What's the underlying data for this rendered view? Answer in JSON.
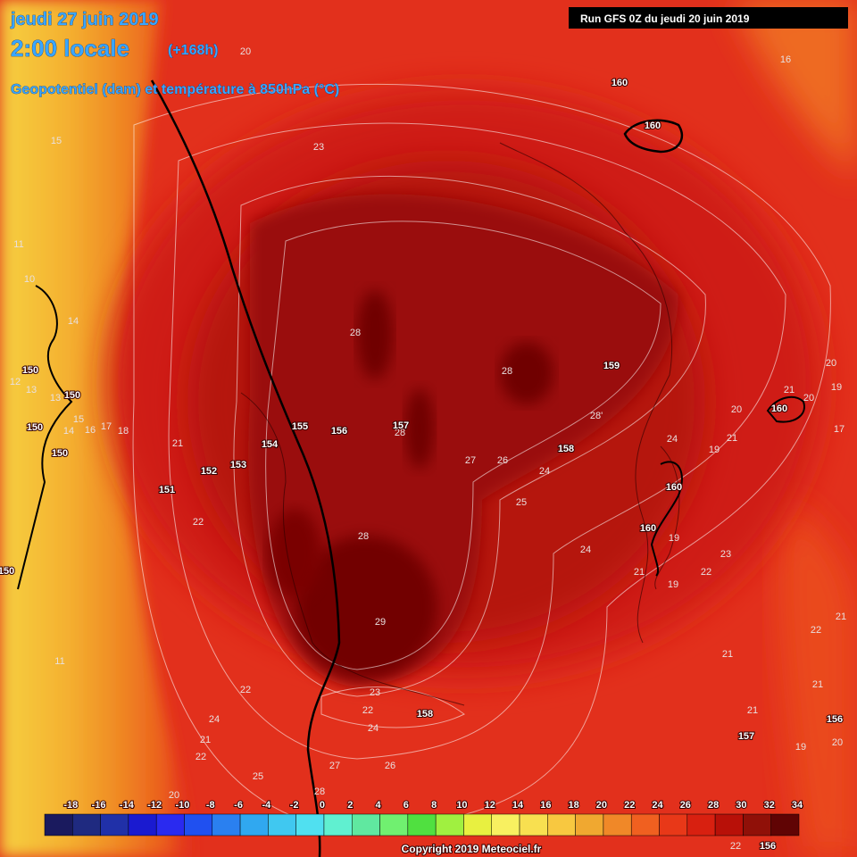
{
  "header": {
    "date": "jeudi 27 juin 2019",
    "time": "2:00 locale",
    "lead": "(+168h)",
    "field": "Geopotentiel (dam) et température à 850hPa (°C)",
    "run": "Run GFS 0Z du jeudi 20 juin 2019"
  },
  "map_labels": {
    "temperature": [
      20,
      16,
      23,
      15,
      10,
      14,
      28,
      28,
      28,
      "28'",
      27,
      26,
      24,
      25,
      28,
      24,
      29,
      22,
      21,
      18,
      17,
      16,
      22,
      23,
      22,
      24,
      24,
      21,
      22,
      25,
      27,
      26,
      28,
      21,
      21,
      21,
      22,
      21,
      19,
      20,
      24,
      21,
      20,
      19,
      23,
      22,
      19,
      19,
      21,
      17,
      20,
      19,
      21,
      20,
      11,
      12,
      13,
      13,
      11,
      15,
      14,
      22,
      20
    ],
    "geopotential": [
      160,
      160,
      159,
      158,
      157,
      156,
      155,
      154,
      153,
      152,
      151,
      150,
      150,
      150,
      150,
      160,
      160,
      160,
      158,
      157,
      156,
      156,
      150
    ]
  },
  "colorbar": {
    "labels": [
      -18,
      -16,
      -14,
      -12,
      -10,
      -8,
      -6,
      -4,
      -2,
      0,
      2,
      4,
      6,
      8,
      10,
      12,
      14,
      16,
      18,
      20,
      22,
      24,
      26,
      28,
      30,
      32,
      34
    ],
    "colors": [
      "#1a1a5e",
      "#1f2a80",
      "#2030a8",
      "#1a1ad0",
      "#2a2af0",
      "#2050f0",
      "#2a80f0",
      "#30a8f0",
      "#40c8f0",
      "#50e0f0",
      "#60f0d0",
      "#60e8a0",
      "#70f070",
      "#50e040",
      "#a0f040",
      "#e8f040",
      "#f8f060",
      "#f8e050",
      "#f8c840",
      "#f0a830",
      "#f08828",
      "#f06020",
      "#e83818",
      "#d82010",
      "#b81008",
      "#901008",
      "#600404"
    ]
  },
  "footer": {
    "copyright": "Copyright 2019 Meteociel.fr"
  }
}
